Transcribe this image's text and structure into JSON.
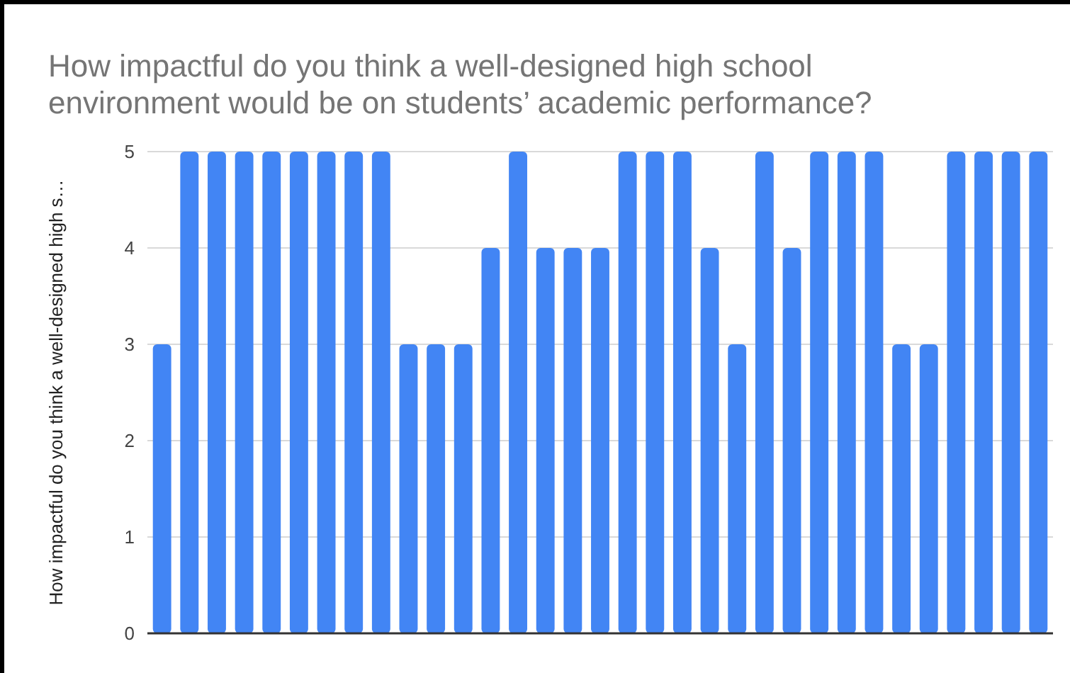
{
  "chart_data": {
    "type": "bar",
    "title": "How impactful do you think a well-designed high school environment would be on students’ academic performance?",
    "ylabel": "How impactful do you think a well-designed high s…",
    "categories": [
      null,
      null,
      null,
      null,
      null,
      null,
      null,
      null,
      null,
      null,
      null,
      null,
      null,
      null,
      null,
      null,
      null,
      null,
      null,
      null,
      null,
      null,
      null,
      null,
      null,
      null,
      null,
      null,
      null,
      null,
      null,
      null,
      null
    ],
    "values": [
      3,
      5,
      5,
      5,
      5,
      5,
      5,
      5,
      5,
      3,
      3,
      3,
      4,
      5,
      4,
      4,
      4,
      5,
      5,
      5,
      4,
      3,
      5,
      4,
      5,
      5,
      5,
      3,
      3,
      5,
      5,
      5,
      5
    ],
    "color": "#4285f4",
    "ylim": [
      0,
      5
    ],
    "yticks": [
      0,
      1,
      2,
      3,
      4,
      5
    ],
    "grid": "y"
  }
}
